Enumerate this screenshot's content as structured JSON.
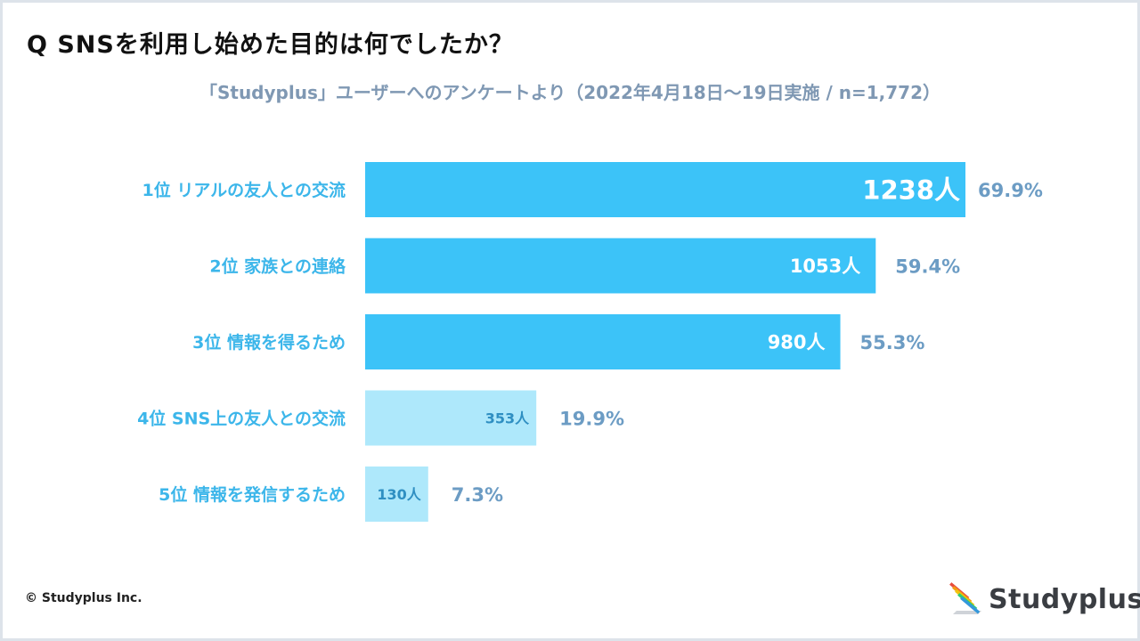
{
  "title": "Q SNSを利用し始めた目的は何でしたか？",
  "subtitle": "「Studyplus」ユーザーへのアンケートより（2022年4月18日～19日実施 / n=1,772）",
  "copyright": "© Studyplus Inc.",
  "logo_text": "Studyplus",
  "colors": {
    "bar_primary": "#3cc3f8",
    "bar_light": "#aee8fb",
    "label": "#3cb6ea",
    "percent": "#6c9cc4"
  },
  "chart_data": {
    "type": "bar",
    "orientation": "horizontal",
    "categories": [
      "1位 リアルの友人との交流",
      "2位 家族との連絡",
      "3位 情報を得るため",
      "4位 SNS上の友人との交流",
      "5位 情報を発信するため"
    ],
    "values": [
      1238,
      1053,
      980,
      353,
      130
    ],
    "value_labels": [
      "1238人",
      "1053人",
      "980人",
      "353人",
      "130人"
    ],
    "percent_labels": [
      "69.9%",
      "59.4%",
      "55.3%",
      "19.9%",
      "7.3%"
    ],
    "highlight": [
      true,
      true,
      true,
      false,
      false
    ],
    "xlim": [
      0,
      1238
    ],
    "grid": false,
    "legend": "none"
  }
}
